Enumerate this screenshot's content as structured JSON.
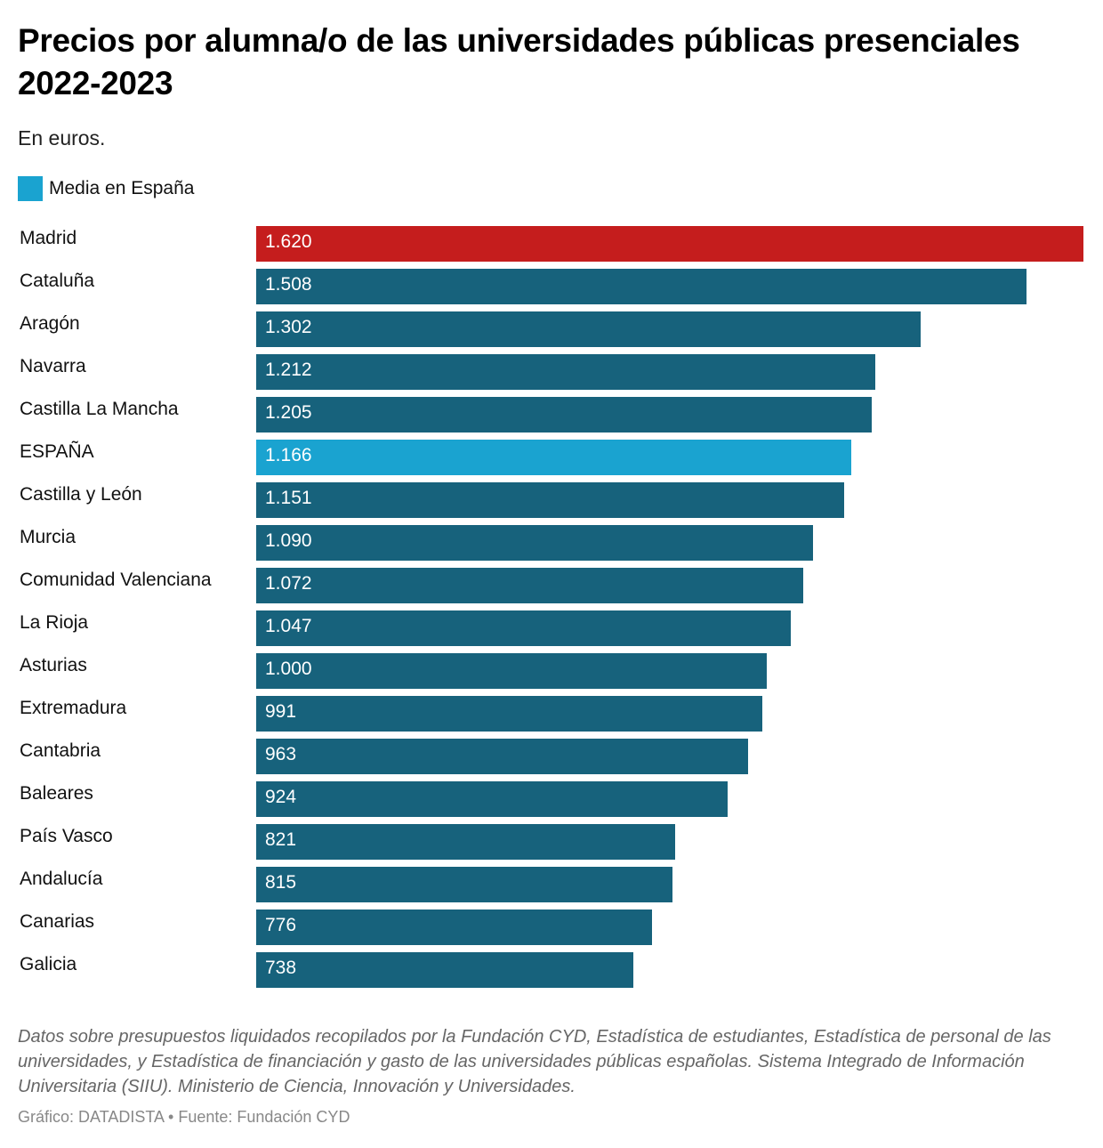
{
  "header": {
    "title": "Precios por alumna/o de las universidades públicas presenciales 2022-2023",
    "subtitle": "En euros."
  },
  "legend": {
    "items": [
      {
        "label": "Media en España",
        "color": "#1aa3d0"
      }
    ]
  },
  "colors": {
    "highlight_max": "#c51d1d",
    "default": "#17627c",
    "average": "#1aa3d0"
  },
  "chart_data": {
    "type": "bar",
    "orientation": "horizontal",
    "title": "Precios por alumna/o de las universidades públicas presenciales 2022-2023",
    "subtitle": "En euros.",
    "xlabel": "",
    "ylabel": "",
    "xlim": [
      0,
      1620
    ],
    "grid": false,
    "legend_position": "top-left",
    "categories": [
      "Madrid",
      "Cataluña",
      "Aragón",
      "Navarra",
      "Castilla La Mancha",
      "ESPAÑA",
      "Castilla y León",
      "Murcia",
      "Comunidad Valenciana",
      "La Rioja",
      "Asturias",
      "Extremadura",
      "Cantabria",
      "Baleares",
      "País Vasco",
      "Andalucía",
      "Canarias",
      "Galicia"
    ],
    "values": [
      1620,
      1508,
      1302,
      1212,
      1205,
      1166,
      1151,
      1090,
      1072,
      1047,
      1000,
      991,
      963,
      924,
      821,
      815,
      776,
      738
    ],
    "value_labels": [
      "1.620",
      "1.508",
      "1.302",
      "1.212",
      "1.205",
      "1.166",
      "1.151",
      "1.090",
      "1.072",
      "1.047",
      "1.000",
      "991",
      "963",
      "924",
      "821",
      "815",
      "776",
      "738"
    ],
    "bar_roles": [
      "max",
      "default",
      "default",
      "default",
      "default",
      "average",
      "default",
      "default",
      "default",
      "default",
      "default",
      "default",
      "default",
      "default",
      "default",
      "default",
      "default",
      "default"
    ]
  },
  "footer": {
    "notes": "Datos sobre presupuestos liquidados recopilados por la Fundación CYD, Estadística de estudiantes, Estadística de personal de las universidades, y Estadística de financiación y gasto de las universidades públicas españolas. Sistema Integrado de Información Universitaria (SIIU). Ministerio de Ciencia, Innovación y Universidades.",
    "credits": "Gráfico: DATADISTA • Fuente: Fundación CYD"
  }
}
